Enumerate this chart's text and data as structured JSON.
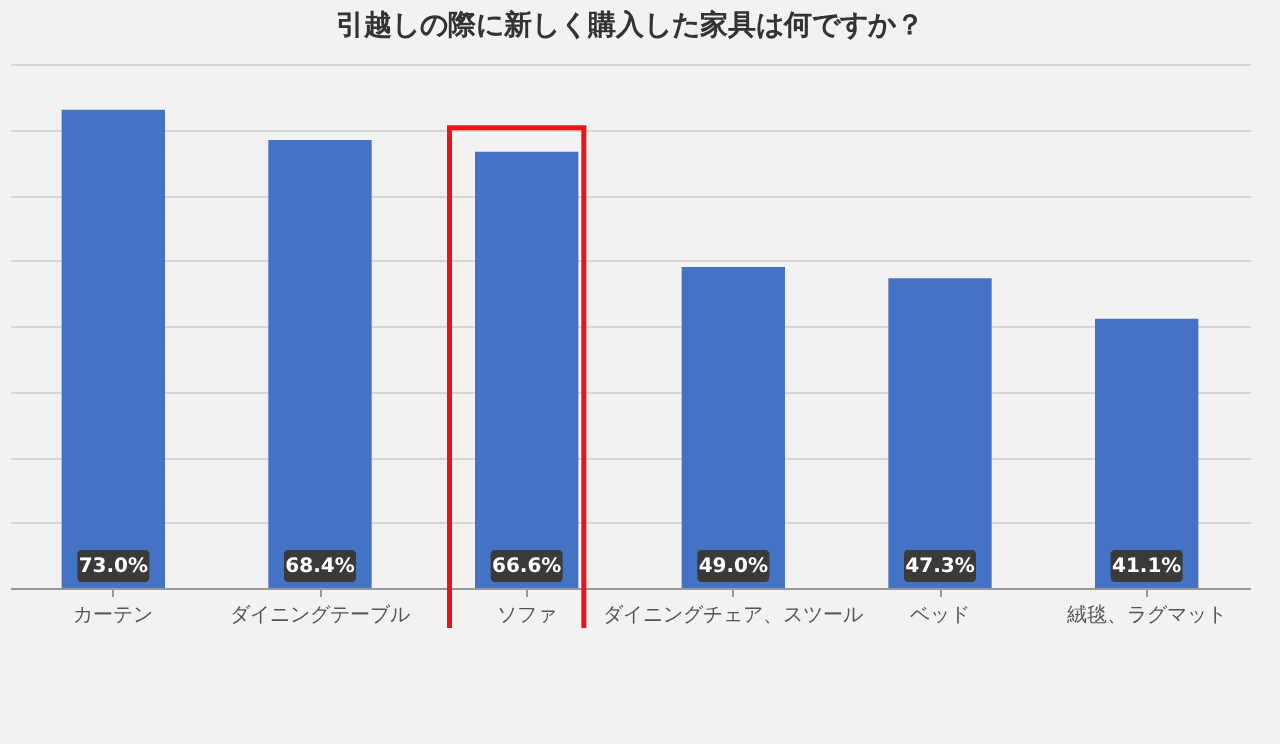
{
  "chart_data": {
    "type": "bar",
    "title": "引越しの際に新しく購入した家具は何ですか？",
    "categories": [
      "カーテン",
      "ダイニングテーブル",
      "ソファ",
      "ダイニングチェア、スツール",
      "ベッド",
      "絨毯、ラグマット"
    ],
    "values": [
      73.0,
      68.4,
      66.6,
      49.0,
      47.3,
      41.1
    ],
    "value_labels": [
      "73.0%",
      "68.4%",
      "66.6%",
      "49.0%",
      "47.3%",
      "41.1%"
    ],
    "color": "#4472c4",
    "tick_labels": "x",
    "grid": "y"
  }
}
